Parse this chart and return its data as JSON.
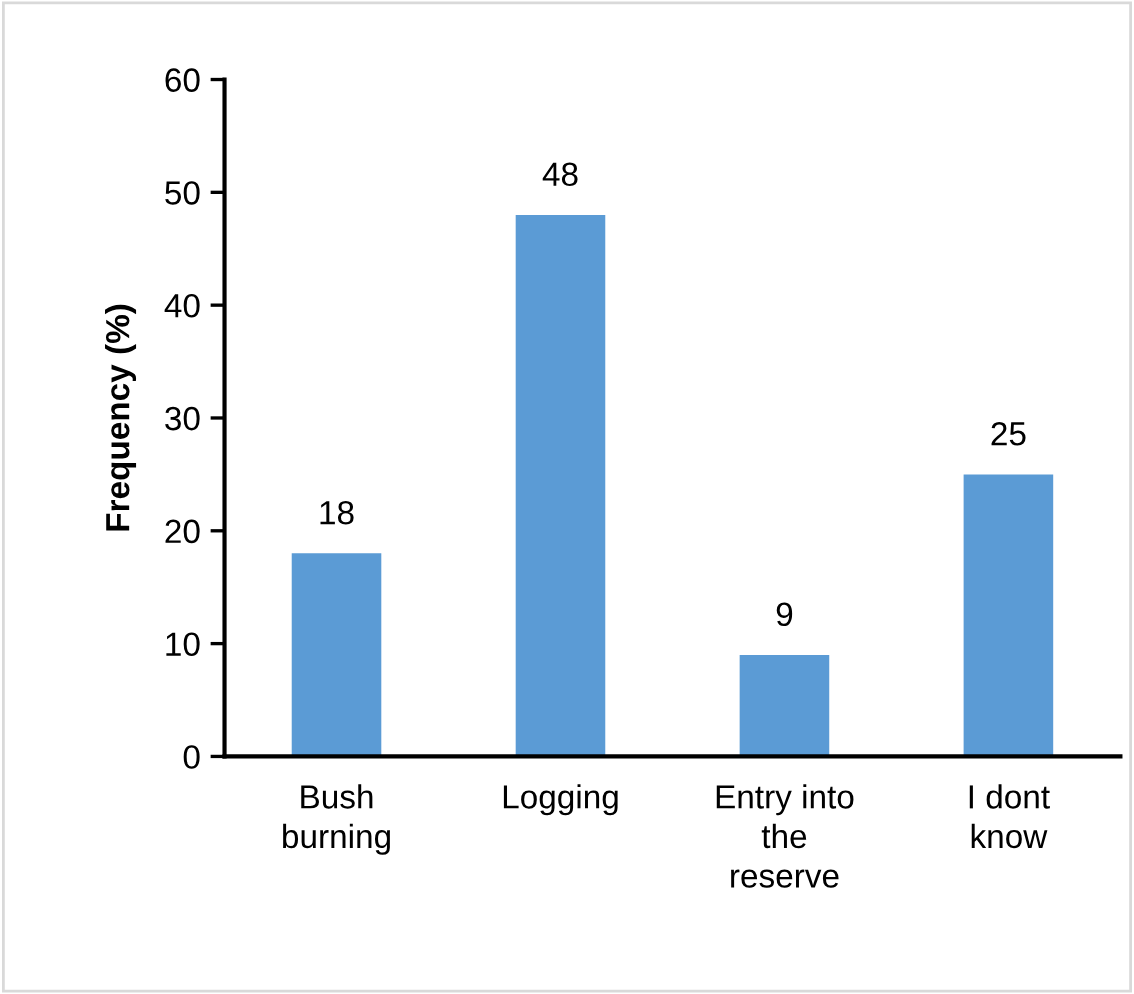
{
  "chart_data": {
    "type": "bar",
    "ylabel": "Frequency (%)",
    "categories": [
      "Bush\nburning",
      "Logging",
      "Entry into\nthe\nreserve",
      "I dont\nknow"
    ],
    "values": [
      18,
      48,
      9,
      25
    ],
    "color": "#5b9bd5",
    "ylim": [
      0,
      60
    ],
    "yticks": [
      0,
      10,
      20,
      30,
      40,
      50,
      60
    ],
    "grid": false,
    "data_labels": true
  }
}
